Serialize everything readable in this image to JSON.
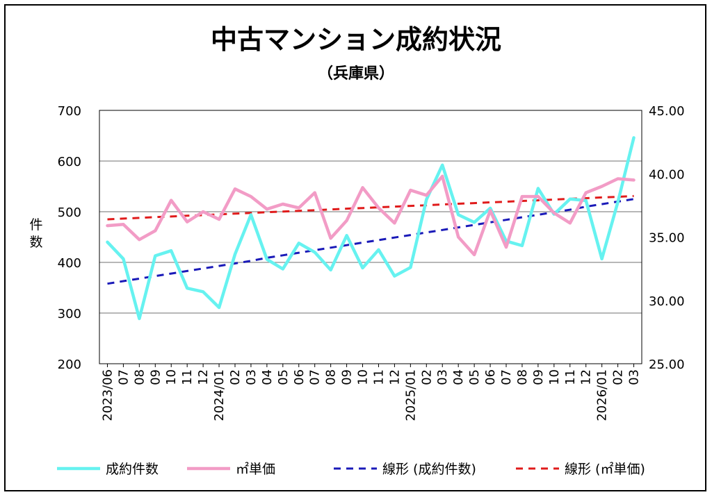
{
  "chart_data": {
    "type": "line",
    "title": "中古マンション成約状況",
    "subtitle": "（兵庫県）",
    "ylabel": "件数",
    "ylim": [
      200,
      700
    ],
    "y2lim": [
      25.0,
      45.0
    ],
    "yticks": [
      "700",
      "600",
      "500",
      "400",
      "300",
      "200"
    ],
    "y2ticks": [
      "45.00",
      "40.00",
      "35.00",
      "30.00",
      "25.00"
    ],
    "grid": true,
    "legend_position": "bottom",
    "categories": [
      "2023/06",
      "07",
      "08",
      "09",
      "10",
      "11",
      "12",
      "2024/01",
      "02",
      "03",
      "04",
      "05",
      "06",
      "07",
      "08",
      "09",
      "10",
      "11",
      "12",
      "2025/01",
      "02",
      "03",
      "04",
      "05",
      "06",
      "07",
      "08",
      "09",
      "10",
      "11",
      "12",
      "2026/01",
      "02",
      "03"
    ],
    "series": [
      {
        "name": "成約件数",
        "axis": "left",
        "color": "#66f2f0",
        "values": [
          440,
          407,
          289,
          413,
          423,
          349,
          342,
          311,
          416,
          494,
          406,
          387,
          438,
          420,
          385,
          453,
          389,
          425,
          373,
          390,
          524,
          592,
          494,
          479,
          507,
          442,
          433,
          546,
          495,
          525,
          522,
          407,
          519,
          646
        ]
      },
      {
        "name": "㎡単価",
        "axis": "right",
        "color": "#f29cc6",
        "values": [
          35.9,
          36.0,
          34.8,
          35.5,
          37.9,
          36.2,
          37.0,
          36.4,
          38.8,
          38.2,
          37.2,
          37.6,
          37.3,
          38.5,
          34.9,
          36.3,
          38.9,
          37.3,
          36.1,
          38.7,
          38.3,
          39.8,
          35.0,
          33.6,
          37.1,
          34.2,
          38.2,
          38.2,
          36.9,
          36.1,
          38.5,
          39.0,
          39.6,
          39.5
        ]
      },
      {
        "name": "線形 (成約件数)",
        "axis": "left",
        "color": "#1a1ab8",
        "dashed": true,
        "values": [
          358,
          363,
          368,
          373,
          378,
          383,
          388,
          393,
          398,
          403,
          409,
          414,
          419,
          424,
          429,
          434,
          439,
          444,
          449,
          454,
          459,
          464,
          469,
          474,
          479,
          484,
          489,
          494,
          499,
          504,
          510,
          515,
          520,
          525
        ]
      },
      {
        "name": "線形 (㎡単価)",
        "axis": "right",
        "color": "#e01b1b",
        "dashed": true,
        "values": [
          36.4,
          36.46,
          36.51,
          36.57,
          36.62,
          36.68,
          36.73,
          36.79,
          36.85,
          36.9,
          36.96,
          37.01,
          37.07,
          37.12,
          37.18,
          37.24,
          37.29,
          37.35,
          37.4,
          37.46,
          37.51,
          37.57,
          37.63,
          37.68,
          37.74,
          37.79,
          37.85,
          37.9,
          37.96,
          38.02,
          38.07,
          38.13,
          38.18,
          38.24
        ]
      }
    ]
  }
}
